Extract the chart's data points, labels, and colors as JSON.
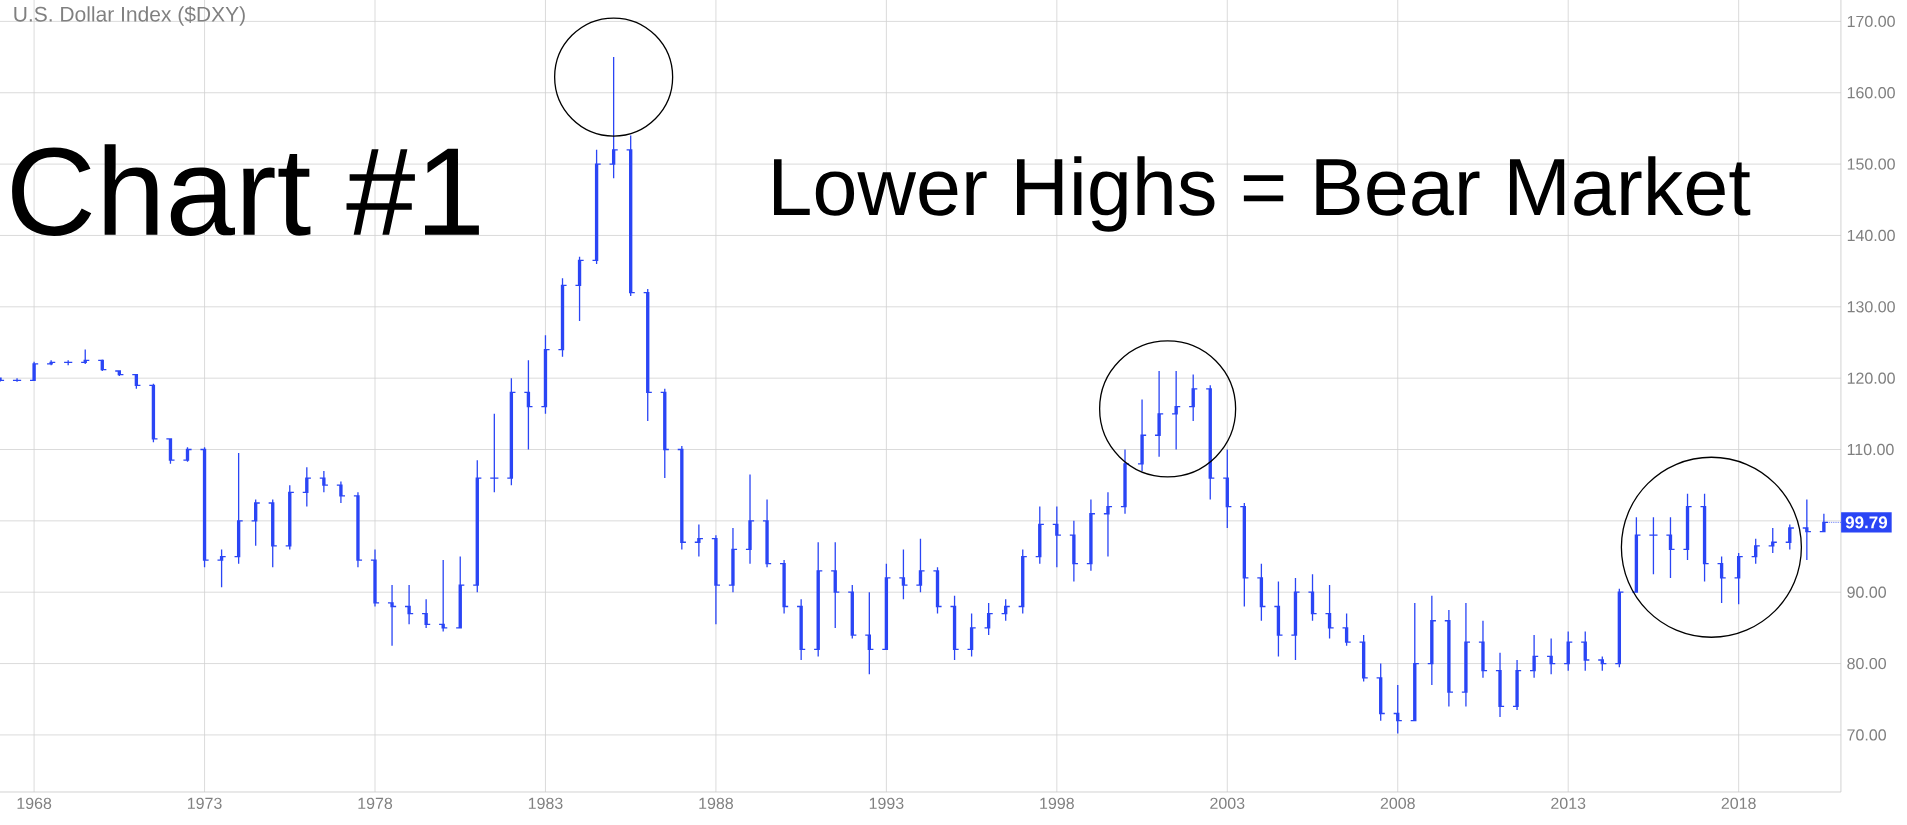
{
  "chart_data": {
    "type": "candlestick",
    "title": "U.S. Dollar Index ($DXY)",
    "color": "#2a45f5",
    "x": [
      "1967-01",
      "1967-07",
      "1968-01",
      "1968-07",
      "1969-01",
      "1969-07",
      "1970-01",
      "1970-07",
      "1971-01",
      "1971-07",
      "1972-01",
      "1972-07",
      "1973-01",
      "1973-07",
      "1974-01",
      "1974-07",
      "1975-01",
      "1975-07",
      "1976-01",
      "1976-07",
      "1977-01",
      "1977-07",
      "1978-01",
      "1978-07",
      "1979-01",
      "1979-07",
      "1980-01",
      "1980-07",
      "1981-01",
      "1981-07",
      "1982-01",
      "1982-07",
      "1983-01",
      "1983-07",
      "1984-01",
      "1984-07",
      "1985-01",
      "1985-07",
      "1986-01",
      "1986-07",
      "1987-01",
      "1987-07",
      "1988-01",
      "1988-07",
      "1989-01",
      "1989-07",
      "1990-01",
      "1990-07",
      "1991-01",
      "1991-07",
      "1992-01",
      "1992-07",
      "1993-01",
      "1993-07",
      "1994-01",
      "1994-07",
      "1995-01",
      "1995-07",
      "1996-01",
      "1996-07",
      "1997-01",
      "1997-07",
      "1998-01",
      "1998-07",
      "1999-01",
      "1999-07",
      "2000-01",
      "2000-07",
      "2001-01",
      "2001-07",
      "2002-01",
      "2002-07",
      "2003-01",
      "2003-07",
      "2004-01",
      "2004-07",
      "2005-01",
      "2005-07",
      "2006-01",
      "2006-07",
      "2007-01",
      "2007-07",
      "2008-01",
      "2008-07",
      "2009-01",
      "2009-07",
      "2010-01",
      "2010-07",
      "2011-01",
      "2011-07",
      "2012-01",
      "2012-07",
      "2013-01",
      "2013-07",
      "2014-01",
      "2014-07",
      "2015-01",
      "2015-07",
      "2016-01",
      "2016-07",
      "2017-01",
      "2017-07",
      "2018-01",
      "2018-07",
      "2019-01",
      "2019-07",
      "2020-01",
      "2020-07"
    ],
    "ohlc": [
      [
        120,
        120,
        119.5,
        119.7
      ],
      [
        119.7,
        120,
        119.5,
        119.7
      ],
      [
        119.7,
        122.3,
        119.7,
        122
      ],
      [
        122,
        122.5,
        121.8,
        122.2
      ],
      [
        122.2,
        122.5,
        121.8,
        122.2
      ],
      [
        122.2,
        124,
        122,
        122.5
      ],
      [
        122.5,
        122.6,
        121,
        121.2
      ],
      [
        121,
        121.1,
        120.3,
        120.5
      ],
      [
        120.5,
        120.6,
        118.5,
        119
      ],
      [
        119,
        119.2,
        111,
        111.5
      ],
      [
        111.5,
        111.5,
        108,
        108.5
      ],
      [
        108.5,
        110.3,
        108.3,
        110
      ],
      [
        110,
        110.3,
        93.5,
        94.5
      ],
      [
        94.5,
        96,
        90.7,
        95
      ],
      [
        95,
        109.5,
        94,
        100
      ],
      [
        100,
        103,
        96.5,
        102.5
      ],
      [
        102.5,
        103,
        93.5,
        96.5
      ],
      [
        96.5,
        105,
        96,
        104
      ],
      [
        104,
        107.5,
        102,
        106
      ],
      [
        106,
        107,
        104,
        105
      ],
      [
        105,
        105.5,
        102.5,
        103.5
      ],
      [
        103.5,
        104,
        93.5,
        94.5
      ],
      [
        94.5,
        96,
        88,
        88.5
      ],
      [
        88.5,
        91,
        82.5,
        88
      ],
      [
        88,
        91,
        85.5,
        87
      ],
      [
        87,
        89,
        85,
        85.5
      ],
      [
        85.5,
        94.5,
        84.5,
        85
      ],
      [
        85,
        95,
        85,
        91
      ],
      [
        91,
        108.5,
        90,
        106
      ],
      [
        106,
        115,
        104,
        106
      ],
      [
        106,
        120,
        105,
        118
      ],
      [
        118,
        122.5,
        110,
        116
      ],
      [
        116,
        126,
        115,
        124
      ],
      [
        124,
        134,
        123,
        133
      ],
      [
        133,
        137,
        128,
        136.5
      ],
      [
        136.5,
        152,
        136,
        150
      ],
      [
        150,
        165,
        148,
        152
      ],
      [
        152,
        154,
        131.5,
        132
      ],
      [
        132,
        132.5,
        114,
        118
      ],
      [
        118,
        118.5,
        106,
        110
      ],
      [
        110,
        110.5,
        96,
        97
      ],
      [
        97,
        99.5,
        95,
        97.5
      ],
      [
        97.5,
        98,
        85.5,
        91
      ],
      [
        91,
        99,
        90,
        96
      ],
      [
        96,
        106.5,
        94,
        100
      ],
      [
        100,
        103,
        93.5,
        94
      ],
      [
        94,
        94.5,
        87,
        88
      ],
      [
        88,
        89,
        80.5,
        82
      ],
      [
        82,
        97,
        81,
        93
      ],
      [
        93,
        97,
        85,
        90
      ],
      [
        90,
        91,
        83.5,
        84
      ],
      [
        84,
        90,
        78.5,
        82
      ],
      [
        82,
        94,
        82,
        92
      ],
      [
        92,
        96,
        89,
        91
      ],
      [
        91,
        97.5,
        90,
        93
      ],
      [
        93,
        93.5,
        87,
        88
      ],
      [
        88,
        89.5,
        80.5,
        82
      ],
      [
        82,
        87,
        81,
        85
      ],
      [
        85,
        88.5,
        84,
        87
      ],
      [
        87,
        89,
        86,
        88
      ],
      [
        88,
        96,
        87,
        95
      ],
      [
        95,
        102,
        94,
        99.5
      ],
      [
        99.5,
        102,
        93.5,
        98
      ],
      [
        98,
        100,
        91.5,
        94
      ],
      [
        94,
        103,
        93,
        101
      ],
      [
        101,
        104,
        95,
        102
      ],
      [
        102,
        110,
        101,
        108
      ],
      [
        108,
        117,
        107,
        112
      ],
      [
        112,
        121,
        109,
        115
      ],
      [
        115,
        121,
        110,
        116
      ],
      [
        116,
        120.5,
        114,
        118.5
      ],
      [
        118.5,
        119,
        103,
        106
      ],
      [
        106,
        110,
        99,
        102
      ],
      [
        102,
        102.5,
        88,
        92
      ],
      [
        92,
        94,
        86,
        88
      ],
      [
        88,
        91.5,
        81,
        84
      ],
      [
        84,
        92,
        80.5,
        90
      ],
      [
        90,
        92.5,
        86,
        87
      ],
      [
        87,
        91,
        83.5,
        85
      ],
      [
        85,
        87,
        82.5,
        83
      ],
      [
        83,
        84,
        77.5,
        78
      ],
      [
        78,
        80,
        72,
        73
      ],
      [
        73,
        77,
        70.2,
        72
      ],
      [
        72,
        88.5,
        72,
        80
      ],
      [
        80,
        89.5,
        77,
        86
      ],
      [
        86,
        87.5,
        74,
        76
      ],
      [
        76,
        88.5,
        74,
        83
      ],
      [
        83,
        86,
        78,
        79
      ],
      [
        79,
        81.5,
        72.5,
        74
      ],
      [
        74,
        80.5,
        73.5,
        79
      ],
      [
        79,
        84,
        78,
        81
      ],
      [
        81,
        83.5,
        78.5,
        80
      ],
      [
        80,
        84.5,
        79,
        83
      ],
      [
        83,
        84.5,
        79,
        80.5
      ],
      [
        80.5,
        81,
        79,
        80
      ],
      [
        80,
        90.5,
        79.5,
        90
      ],
      [
        90,
        100.5,
        90,
        98
      ],
      [
        98,
        100.5,
        92.5,
        98
      ],
      [
        98,
        100.5,
        92,
        96
      ],
      [
        96,
        103.8,
        94.5,
        102
      ],
      [
        102,
        103.8,
        91.5,
        94
      ],
      [
        94,
        95,
        88.5,
        92
      ],
      [
        92,
        95.5,
        88.3,
        95
      ],
      [
        95,
        97.5,
        94,
        96.5
      ],
      [
        96.5,
        99,
        95.5,
        97
      ],
      [
        97,
        99.5,
        96,
        99
      ],
      [
        99,
        103,
        94.5,
        98.5
      ],
      [
        98.5,
        101,
        98.5,
        99.79
      ]
    ],
    "xlim": [
      "1967-01",
      "2021-01"
    ],
    "xticks": [
      "1968",
      "1973",
      "1978",
      "1983",
      "1988",
      "1993",
      "1998",
      "2003",
      "2008",
      "2013",
      "2018"
    ],
    "ylim": [
      62,
      173
    ],
    "yticks": [
      {
        "value": 70,
        "label": "70.00"
      },
      {
        "value": 80,
        "label": "80.00"
      },
      {
        "value": 90,
        "label": "90.00"
      },
      {
        "value": 100,
        "label": null
      },
      {
        "value": 110,
        "label": "110.00"
      },
      {
        "value": 120,
        "label": "120.00"
      },
      {
        "value": 130,
        "label": "130.00"
      },
      {
        "value": 140,
        "label": "140.00"
      },
      {
        "value": 150,
        "label": "150.00"
      },
      {
        "value": 160,
        "label": "160.00"
      },
      {
        "value": 170,
        "label": "170.00"
      }
    ],
    "grid": true,
    "annotations": [
      "Chart #1",
      "Lower Highs = Bear Market",
      {
        "text": "99.79",
        "x": "2020-07",
        "y": 99.79
      }
    ]
  }
}
